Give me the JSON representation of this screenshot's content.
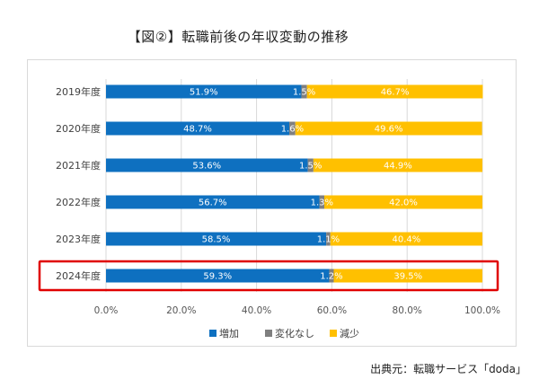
{
  "title": "【図②】転職前後の年収変動の推移",
  "source": "出典元：転職サービス「doda」",
  "colors": {
    "increase": "#0e70c0",
    "nochange": "#7f7f7f",
    "decrease": "#ffc000",
    "highlight": "#e00000"
  },
  "chart_data": {
    "type": "bar",
    "orientation": "horizontal",
    "stacked": "percent",
    "title": "【図②】転職前後の年収変動の推移",
    "categories": [
      "2019年度",
      "2020年度",
      "2021年度",
      "2022年度",
      "2023年度",
      "2024年度"
    ],
    "series": [
      {
        "name": "増加",
        "values": [
          51.9,
          48.7,
          53.6,
          56.7,
          58.5,
          59.3
        ],
        "labels": [
          "51.9%",
          "48.7%",
          "53.6%",
          "56.7%",
          "58.5%",
          "59.3%"
        ]
      },
      {
        "name": "変化なし",
        "values": [
          1.5,
          1.6,
          1.5,
          1.3,
          1.1,
          1.2
        ],
        "labels": [
          "1.5%",
          "1.6%",
          "1.5%",
          "1.3%",
          "1.1%",
          "1.2%"
        ]
      },
      {
        "name": "減少",
        "values": [
          46.7,
          49.6,
          44.9,
          42.0,
          40.4,
          39.5
        ],
        "labels": [
          "46.7%",
          "49.6%",
          "44.9%",
          "42.0%",
          "40.4%",
          "39.5%"
        ]
      }
    ],
    "xlim": [
      0,
      100
    ],
    "xticks": [
      "0.0%",
      "20.0%",
      "40.0%",
      "60.0%",
      "80.0%",
      "100.0%"
    ],
    "legend": "bottom",
    "grid": true,
    "highlighted_category": "2024年度"
  }
}
